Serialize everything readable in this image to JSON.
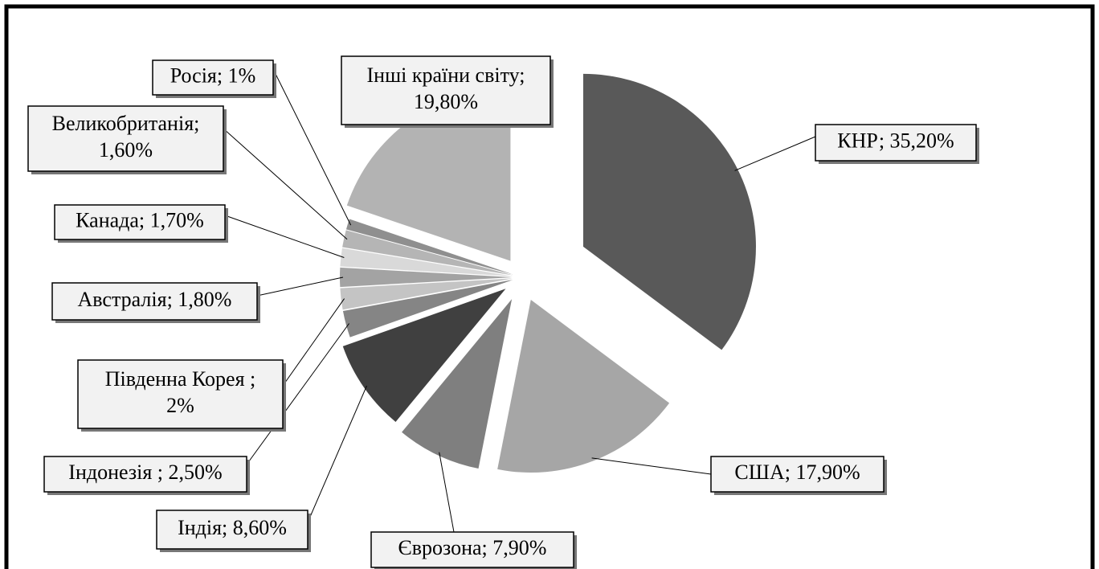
{
  "chart_data": {
    "type": "pie",
    "values": [
      35.2,
      17.9,
      7.9,
      8.6,
      2.5,
      2,
      1.8,
      1.7,
      1.6,
      1,
      19.8
    ],
    "value_labels": [
      [
        "КНР; 35,20%"
      ],
      [
        "США; 17,90%"
      ],
      [
        "Єврозона; 7,90%"
      ],
      [
        "Індія; 8,60%"
      ],
      [
        "Індонезія ; 2,50%"
      ],
      [
        "Південна Корея ;",
        "2%"
      ],
      [
        "Австралія; 1,80%"
      ],
      [
        "Канада; 1,70%"
      ],
      [
        "Великобританія;",
        "1,60%"
      ],
      [
        "Росія; 1%"
      ],
      [
        "Інші країни світу;",
        "19,80%"
      ]
    ],
    "colors": [
      "#595959",
      "#a6a6a6",
      "#7f7f7f",
      "#404040",
      "#858585",
      "#c4c4c4",
      "#a3a3a3",
      "#d9d9d9",
      "#b5b5b5",
      "#8f8f8f",
      "#b3b3b3"
    ]
  }
}
